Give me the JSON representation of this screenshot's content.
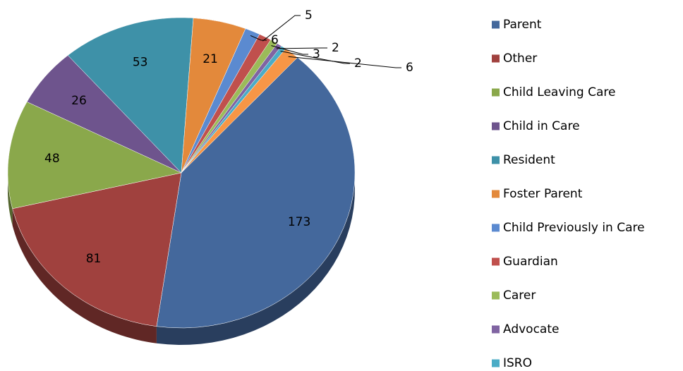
{
  "chart_data": {
    "type": "pie3d",
    "categories": [
      "Parent",
      "Other",
      "Child Leaving Care",
      "Child in Care",
      "Resident",
      "Foster Parent",
      "Child Previously in Care",
      "Guardian",
      "Carer",
      "Advocate",
      "ISRO",
      null
    ],
    "values": [
      173,
      81,
      48,
      26,
      53,
      21,
      6,
      5,
      3,
      2,
      2,
      6
    ],
    "colors": [
      "#44689c",
      "#a0413e",
      "#8aa84b",
      "#6e548d",
      "#3e91a8",
      "#e3893b",
      "#5b8ad0",
      "#c0504d",
      "#9bbb59",
      "#8064a2",
      "#4bacc6",
      "#f79646"
    ],
    "legend": "right"
  }
}
